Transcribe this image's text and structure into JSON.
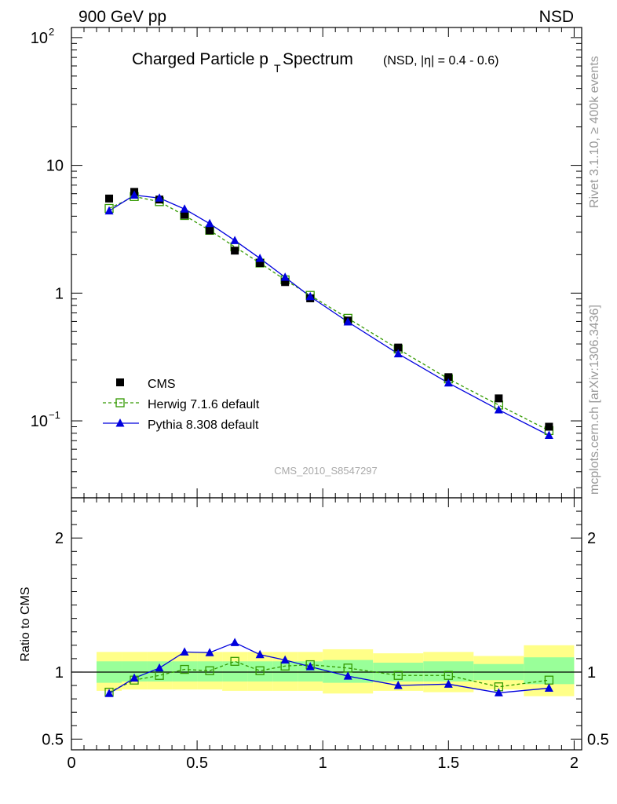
{
  "header": {
    "left": "900 GeV pp",
    "right": "NSD"
  },
  "title": {
    "main_a": "Charged Particle p",
    "main_sub": "T",
    "main_b": " Spectrum",
    "detail": "(NSD, |η| = 0.4 - 0.6)"
  },
  "side_labels": {
    "rivet": "Rivet 3.1.10, ≥ 400k events",
    "mcplots": "mcplots.cern.ch [arXiv:1306.3436]"
  },
  "analysis_id": "CMS_2010_S8547297",
  "colors": {
    "cms": "#000000",
    "herwig": "#339900",
    "pythia": "#0000dd",
    "band_inner": "#99ff99",
    "band_outer": "#ffff88"
  },
  "chart_data": [
    {
      "type": "scatter",
      "role": "main",
      "yscale": "log",
      "xlim": [
        0,
        2.03
      ],
      "ylim": [
        0.025,
        120
      ],
      "ytick_labels": {
        "0.1": "10",
        "1": "1",
        "10": "10",
        "100": "10"
      },
      "ytick_exponents": {
        "0.1": "−1",
        "100": "2"
      },
      "legend_position": "bottom-left",
      "x": [
        0.15,
        0.25,
        0.35,
        0.45,
        0.55,
        0.65,
        0.75,
        0.85,
        0.95,
        1.1,
        1.3,
        1.5,
        1.7,
        1.9
      ],
      "series": [
        {
          "name": "CMS",
          "style": "markers",
          "values": [
            5.5,
            6.2,
            5.4,
            4.1,
            3.1,
            2.15,
            1.72,
            1.22,
            0.91,
            0.61,
            0.375,
            0.22,
            0.15,
            0.09
          ]
        },
        {
          "name": "Herwig 7.1.6 default",
          "style": "dashed-open-square",
          "values": [
            4.6,
            5.7,
            5.2,
            4.05,
            3.1,
            2.3,
            1.72,
            1.27,
            0.96,
            0.635,
            0.365,
            0.213,
            0.133,
            0.084
          ]
        },
        {
          "name": "Pythia 8.308 default",
          "style": "solid-triangle",
          "values": [
            4.4,
            5.85,
            5.55,
            4.55,
            3.5,
            2.58,
            1.87,
            1.33,
            0.94,
            0.595,
            0.335,
            0.198,
            0.122,
            0.077
          ]
        }
      ]
    },
    {
      "type": "line",
      "role": "ratio",
      "ylabel": "Ratio to CMS",
      "xlim": [
        0,
        2.03
      ],
      "ylim": [
        0.42,
        2.3
      ],
      "xtick_labels": [
        "0",
        "0.5",
        "1",
        "1.5",
        "2"
      ],
      "ytick_labels": [
        "0.5",
        "1",
        "2"
      ],
      "reference_line": 1,
      "bins": [
        [
          0.1,
          0.2
        ],
        [
          0.2,
          0.3
        ],
        [
          0.3,
          0.4
        ],
        [
          0.4,
          0.5
        ],
        [
          0.5,
          0.6
        ],
        [
          0.6,
          0.7
        ],
        [
          0.7,
          0.8
        ],
        [
          0.8,
          0.9
        ],
        [
          0.9,
          1.0
        ],
        [
          1.0,
          1.2
        ],
        [
          1.2,
          1.4
        ],
        [
          1.4,
          1.6
        ],
        [
          1.6,
          1.8
        ],
        [
          1.8,
          2.0
        ]
      ],
      "band_inner": [
        [
          0.92,
          1.08
        ],
        [
          0.93,
          1.08
        ],
        [
          0.93,
          1.08
        ],
        [
          0.93,
          1.08
        ],
        [
          0.93,
          1.08
        ],
        [
          0.93,
          1.08
        ],
        [
          0.93,
          1.08
        ],
        [
          0.93,
          1.08
        ],
        [
          0.93,
          1.08
        ],
        [
          0.92,
          1.09
        ],
        [
          0.93,
          1.07
        ],
        [
          0.93,
          1.08
        ],
        [
          0.94,
          1.06
        ],
        [
          0.91,
          1.11
        ]
      ],
      "band_outer": [
        [
          0.86,
          1.15
        ],
        [
          0.87,
          1.15
        ],
        [
          0.87,
          1.15
        ],
        [
          0.87,
          1.15
        ],
        [
          0.87,
          1.15
        ],
        [
          0.86,
          1.15
        ],
        [
          0.86,
          1.15
        ],
        [
          0.86,
          1.15
        ],
        [
          0.86,
          1.15
        ],
        [
          0.84,
          1.17
        ],
        [
          0.86,
          1.14
        ],
        [
          0.85,
          1.15
        ],
        [
          0.87,
          1.12
        ],
        [
          0.82,
          1.2
        ]
      ],
      "x": [
        0.15,
        0.25,
        0.35,
        0.45,
        0.55,
        0.65,
        0.75,
        0.85,
        0.95,
        1.1,
        1.3,
        1.5,
        1.7,
        1.9
      ],
      "series": [
        {
          "name": "Herwig 7.1.6 default",
          "values": [
            0.85,
            0.94,
            0.975,
            1.02,
            1.01,
            1.08,
            1.01,
            1.045,
            1.055,
            1.03,
            0.975,
            0.975,
            0.89,
            0.94
          ]
        },
        {
          "name": "Pythia 8.308 default",
          "values": [
            0.84,
            0.955,
            1.03,
            1.15,
            1.145,
            1.22,
            1.13,
            1.09,
            1.04,
            0.97,
            0.9,
            0.91,
            0.845,
            0.88
          ]
        }
      ]
    }
  ]
}
